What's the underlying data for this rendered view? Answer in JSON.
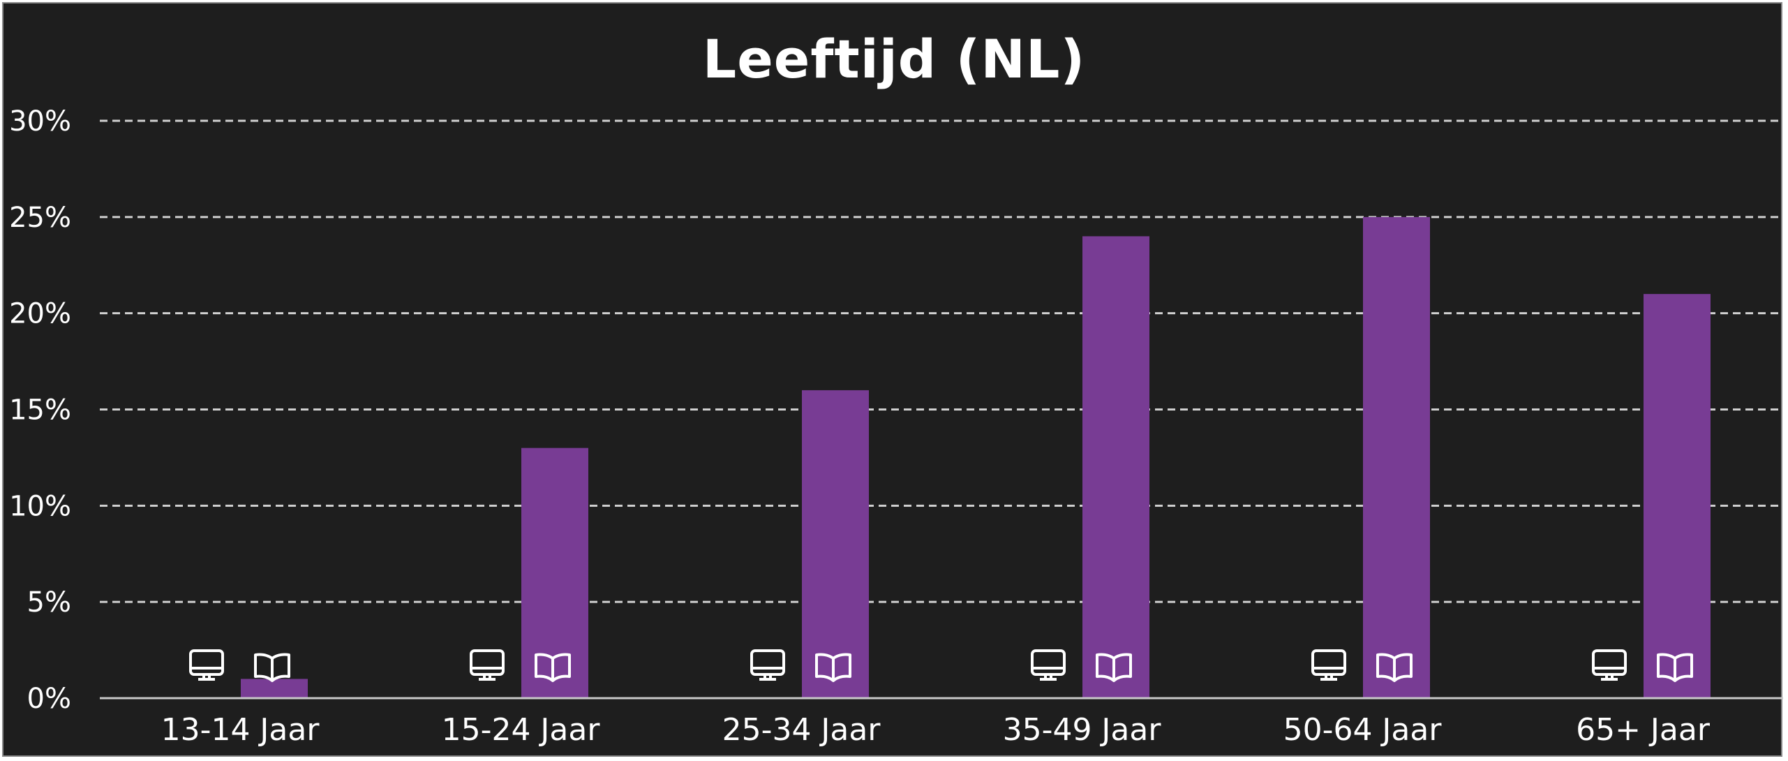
{
  "title": "Leeftijd (NL)",
  "colors": {
    "background": "#1e1e1e",
    "bar": "#783c94",
    "grid": "#d0d0d0",
    "axis": "#c8c8c8",
    "text": "#ffffff",
    "border": "#8a8a8a"
  },
  "icons": {
    "series_1": "monitor-icon",
    "series_2": "open-book-icon"
  },
  "chart_data": {
    "type": "bar",
    "title": "Leeftijd (NL)",
    "xlabel": "",
    "ylabel": "",
    "categories": [
      "13-14 Jaar",
      "15-24 Jaar",
      "25-34 Jaar",
      "35-49 Jaar",
      "50-64 Jaar",
      "65+ Jaar"
    ],
    "series": [
      {
        "name": "Digitaal (monitor icon)",
        "values": [
          0,
          0,
          0,
          0,
          0,
          0
        ]
      },
      {
        "name": "Print (book icon)",
        "values": [
          1,
          13,
          16,
          24,
          25,
          21
        ]
      }
    ],
    "ylim": [
      0,
      30
    ],
    "yticks": [
      0,
      5,
      10,
      15,
      20,
      25,
      30
    ],
    "ytick_labels": [
      "0%",
      "5%",
      "10%",
      "15%",
      "20%",
      "25%",
      "30%"
    ],
    "grid": true,
    "grid_style": "dashed",
    "legend": "none (icons under bars)"
  }
}
